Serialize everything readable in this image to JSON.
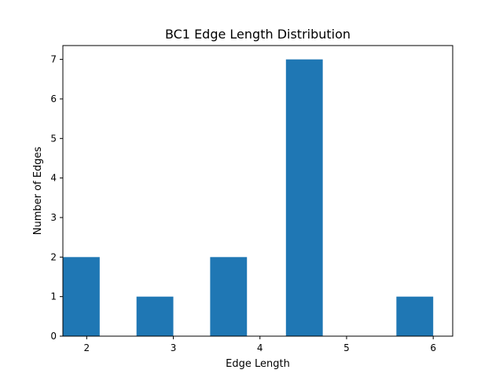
{
  "chart_data": {
    "type": "bar",
    "title": "BC1 Edge Length Distribution",
    "xlabel": "Edge Length",
    "ylabel": "Number of Edges",
    "xlim": [
      1.725,
      6.225
    ],
    "ylim": [
      0,
      7.35
    ],
    "xticks": [
      2,
      3,
      4,
      5,
      6
    ],
    "yticks": [
      0,
      1,
      2,
      3,
      4,
      5,
      6,
      7
    ],
    "bars": [
      {
        "start": 1.725,
        "end": 2.15,
        "value": 2
      },
      {
        "start": 2.575,
        "end": 3.0,
        "value": 1
      },
      {
        "start": 3.425,
        "end": 3.85,
        "value": 2
      },
      {
        "start": 4.3,
        "end": 4.725,
        "value": 7
      },
      {
        "start": 5.575,
        "end": 6.0,
        "value": 1
      }
    ],
    "bar_color": "#1f77b4",
    "grid": false
  }
}
